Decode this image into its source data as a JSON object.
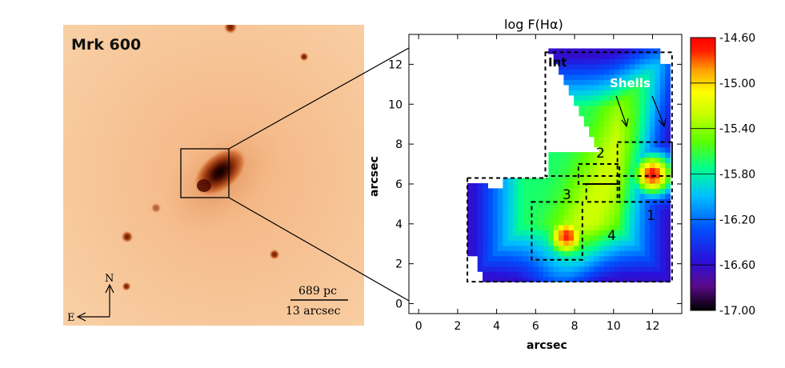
{
  "left_panel": {
    "galaxy_label": "Mrk 600",
    "compass": {
      "north": "N",
      "east": "E"
    },
    "scale_bar": {
      "physical": "689 pc",
      "angular": "13 arcsec"
    }
  },
  "right_panel": {
    "title": "log F(Hα)",
    "xlabel": "arcsec",
    "ylabel": "arcsec",
    "x_ticks": [
      "0",
      "2",
      "4",
      "6",
      "8",
      "10",
      "12"
    ],
    "y_ticks": [
      "0",
      "2",
      "4",
      "6",
      "8",
      "10",
      "12"
    ],
    "annotations": {
      "int": "Int",
      "shells": "Shells",
      "r1": "1",
      "r2": "2",
      "r3": "3",
      "r4": "4"
    },
    "colorbar": {
      "ticks": [
        "-14.60",
        "-15.00",
        "-15.40",
        "-15.80",
        "-16.20",
        "-16.60",
        "-17.00"
      ],
      "colors": [
        "#000000",
        "#5a0a8a",
        "#2a10d8",
        "#0050ff",
        "#00c0ff",
        "#00ff90",
        "#5cff00",
        "#c8ff00",
        "#ffff00",
        "#ffa000",
        "#ff2000",
        "#ff0000"
      ]
    }
  },
  "chart_data": {
    "type": "heatmap",
    "title": "log F(Hα)",
    "xlabel": "arcsec",
    "ylabel": "arcsec",
    "xlim": [
      -0.5,
      13.5
    ],
    "ylim": [
      -0.5,
      13.5
    ],
    "value_range": [
      -17.0,
      -14.6
    ],
    "peaks": [
      {
        "label": "1",
        "x": 12.0,
        "y": 6.5,
        "value": -14.65
      },
      {
        "label": "2",
        "x": 8.8,
        "y": 6.4,
        "value": -15.35
      },
      {
        "label": "3",
        "x": 9.4,
        "y": 5.6,
        "value": -15.5
      },
      {
        "label": "4",
        "x": 7.6,
        "y": 3.4,
        "value": -14.7
      }
    ],
    "regions": [
      {
        "label": "Int",
        "x": [
          6.5,
          13.0
        ],
        "y": [
          6.4,
          12.6
        ]
      },
      {
        "label": "1",
        "x": [
          10.2,
          13.0
        ],
        "y": [
          5.1,
          8.1
        ]
      },
      {
        "label": "2",
        "x": [
          8.2,
          10.3
        ],
        "y": [
          6.0,
          7.0
        ]
      },
      {
        "label": "3",
        "x": [
          8.6,
          10.3
        ],
        "y": [
          5.1,
          6.0
        ]
      },
      {
        "label": "4",
        "x": [
          5.8,
          8.4
        ],
        "y": [
          2.2,
          5.1
        ]
      }
    ]
  }
}
